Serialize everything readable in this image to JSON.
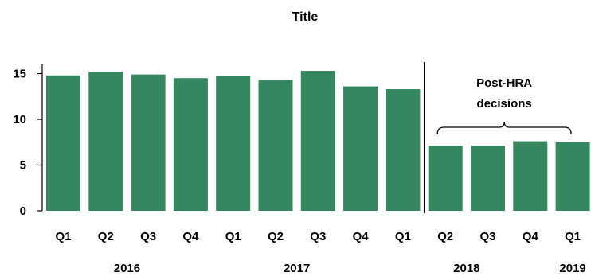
{
  "chart_data": {
    "type": "bar",
    "title": "Title",
    "xlabel": "",
    "ylabel": "",
    "ylim": [
      0,
      16
    ],
    "yticks": [
      0,
      5,
      10,
      15
    ],
    "grid": false,
    "bar_color": "#358760",
    "categories": [
      "Q1",
      "Q2",
      "Q3",
      "Q4",
      "Q1",
      "Q2",
      "Q3",
      "Q4",
      "Q1",
      "Q2",
      "Q3",
      "Q4",
      "Q1"
    ],
    "values": [
      14.8,
      15.2,
      14.9,
      14.5,
      14.7,
      14.3,
      15.3,
      13.6,
      13.3,
      7.1,
      7.1,
      7.6,
      7.5
    ],
    "year_labels": [
      {
        "label": "2016",
        "category_index": 1.5
      },
      {
        "label": "2017",
        "category_index": 5.5
      },
      {
        "label": "2018",
        "category_index": 9.5
      },
      {
        "label": "2019",
        "category_index": 12
      }
    ],
    "annotation": {
      "text_lines": [
        "Post-HRA",
        "decisions"
      ],
      "divider_after_index": 8,
      "bracket_range": [
        9,
        12
      ]
    }
  }
}
